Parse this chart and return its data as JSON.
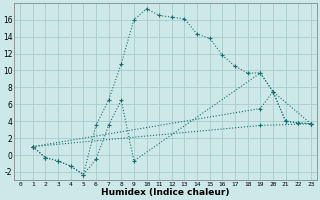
{
  "xlabel": "Humidex (Indice chaleur)",
  "bg_color": "#cce8e8",
  "grid_color": "#aacccc",
  "line_color": "#1a6e6e",
  "xlim": [
    -0.5,
    23.5
  ],
  "ylim": [
    -3,
    18
  ],
  "xticks": [
    0,
    1,
    2,
    3,
    4,
    5,
    6,
    7,
    8,
    9,
    10,
    11,
    12,
    13,
    14,
    15,
    16,
    17,
    18,
    19,
    20,
    21,
    22,
    23
  ],
  "yticks": [
    -2,
    0,
    2,
    4,
    6,
    8,
    10,
    12,
    14,
    16
  ],
  "lines": [
    {
      "x": [
        1,
        2,
        3,
        4,
        5,
        6,
        7,
        8,
        9,
        10,
        11,
        12,
        13,
        14,
        15,
        16,
        17,
        18,
        19,
        20,
        21,
        22,
        23
      ],
      "y": [
        1.0,
        -0.3,
        -0.7,
        -1.3,
        -2.3,
        3.5,
        6.5,
        10.8,
        16.0,
        17.3,
        16.5,
        16.3,
        16.1,
        14.3,
        13.8,
        11.8,
        10.5,
        9.7,
        9.7,
        7.5,
        4.0,
        3.8,
        3.7
      ]
    },
    {
      "x": [
        1,
        2,
        3,
        4,
        5,
        6,
        7,
        8,
        9,
        19,
        20,
        21,
        22,
        23
      ],
      "y": [
        1.0,
        -0.3,
        -0.7,
        -1.3,
        -2.3,
        -0.5,
        3.5,
        6.5,
        -0.7,
        9.7,
        7.5,
        4.0,
        3.8,
        3.7
      ]
    },
    {
      "x": [
        1,
        19,
        20,
        23
      ],
      "y": [
        1.0,
        5.5,
        7.5,
        3.7
      ]
    },
    {
      "x": [
        1,
        19,
        23
      ],
      "y": [
        1.0,
        3.5,
        3.7
      ]
    }
  ]
}
